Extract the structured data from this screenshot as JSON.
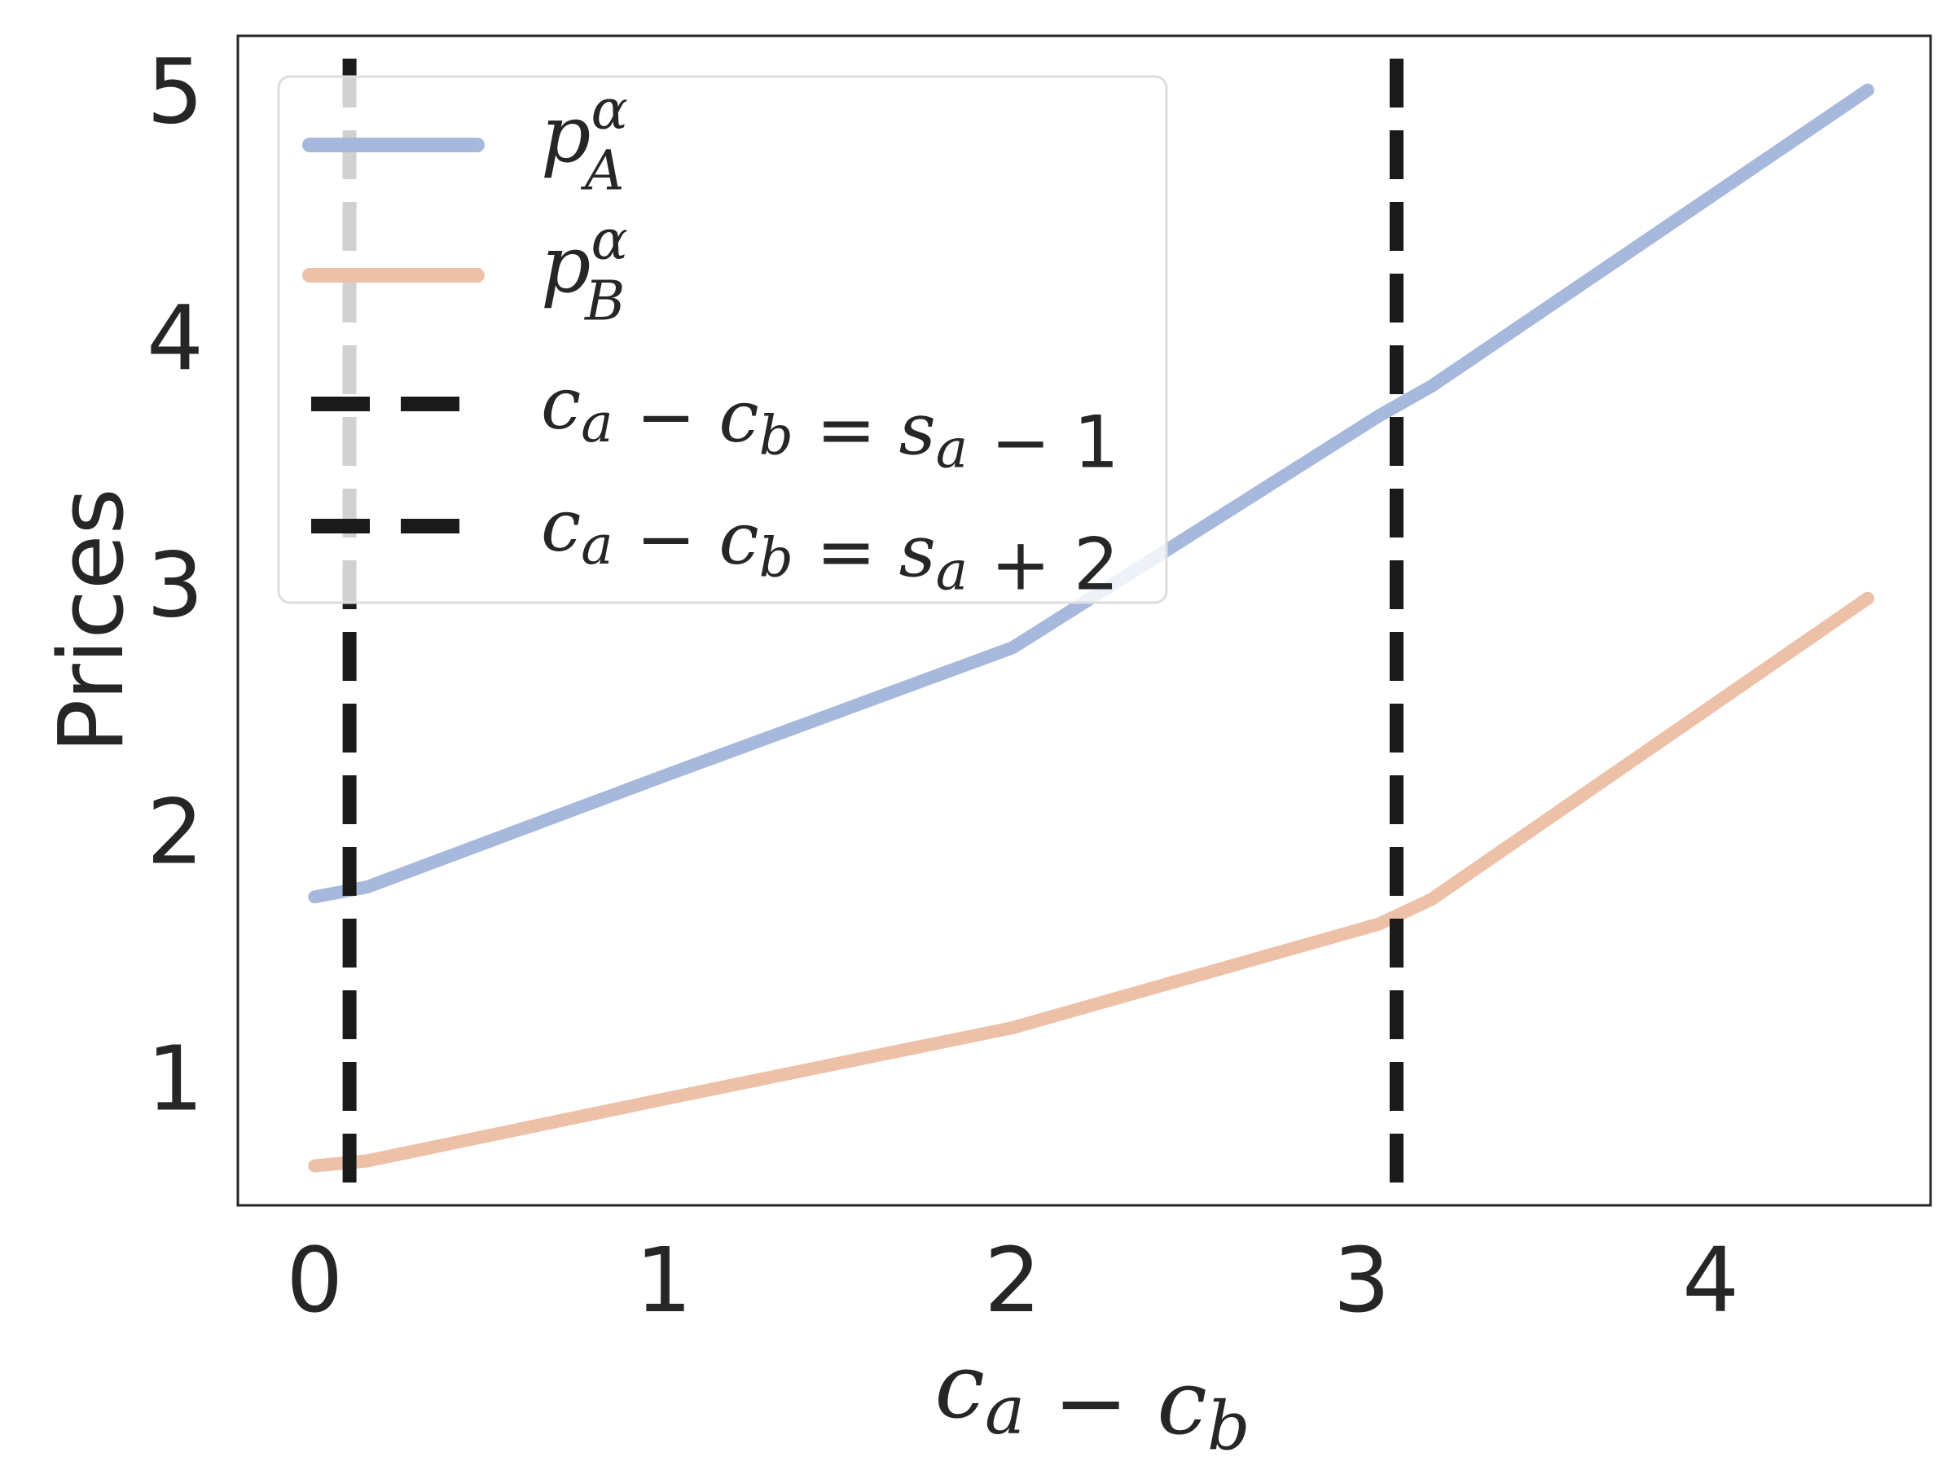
{
  "chart_data": {
    "type": "line",
    "xlabel": "c_a − c_b",
    "ylabel": "Prices",
    "xlim": [
      -0.22,
      4.63
    ],
    "ylim": [
      0.48,
      5.22
    ],
    "xticks": [
      "0",
      "1",
      "2",
      "3",
      "4"
    ],
    "xtick_values": [
      0,
      1,
      2,
      3,
      4
    ],
    "yticks": [
      "1",
      "2",
      "3",
      "4",
      "5"
    ],
    "ytick_values": [
      1,
      2,
      3,
      4,
      5
    ],
    "grid": false,
    "legend_position": "top-left",
    "series": [
      {
        "name": "p_A^α",
        "color": "#a6b9dc",
        "x": [
          0.0,
          0.15,
          1.0,
          2.0,
          3.05,
          3.2,
          4.45
        ],
        "y": [
          1.73,
          1.77,
          2.22,
          2.74,
          3.68,
          3.8,
          5.0
        ]
      },
      {
        "name": "p_B^α",
        "color": "#ecc1a8",
        "x": [
          0.0,
          0.15,
          1.0,
          2.0,
          3.05,
          3.2,
          4.45
        ],
        "y": [
          0.64,
          0.66,
          0.91,
          1.2,
          1.62,
          1.72,
          2.94
        ]
      }
    ],
    "vlines": [
      {
        "label": "c_a − c_b = s_a − 1",
        "x": 0.1,
        "color": "#1a1a1a",
        "style": "dashed"
      },
      {
        "label": "c_a − c_b = s_a + 2",
        "x": 3.1,
        "color": "#1a1a1a",
        "style": "dashed"
      }
    ]
  }
}
